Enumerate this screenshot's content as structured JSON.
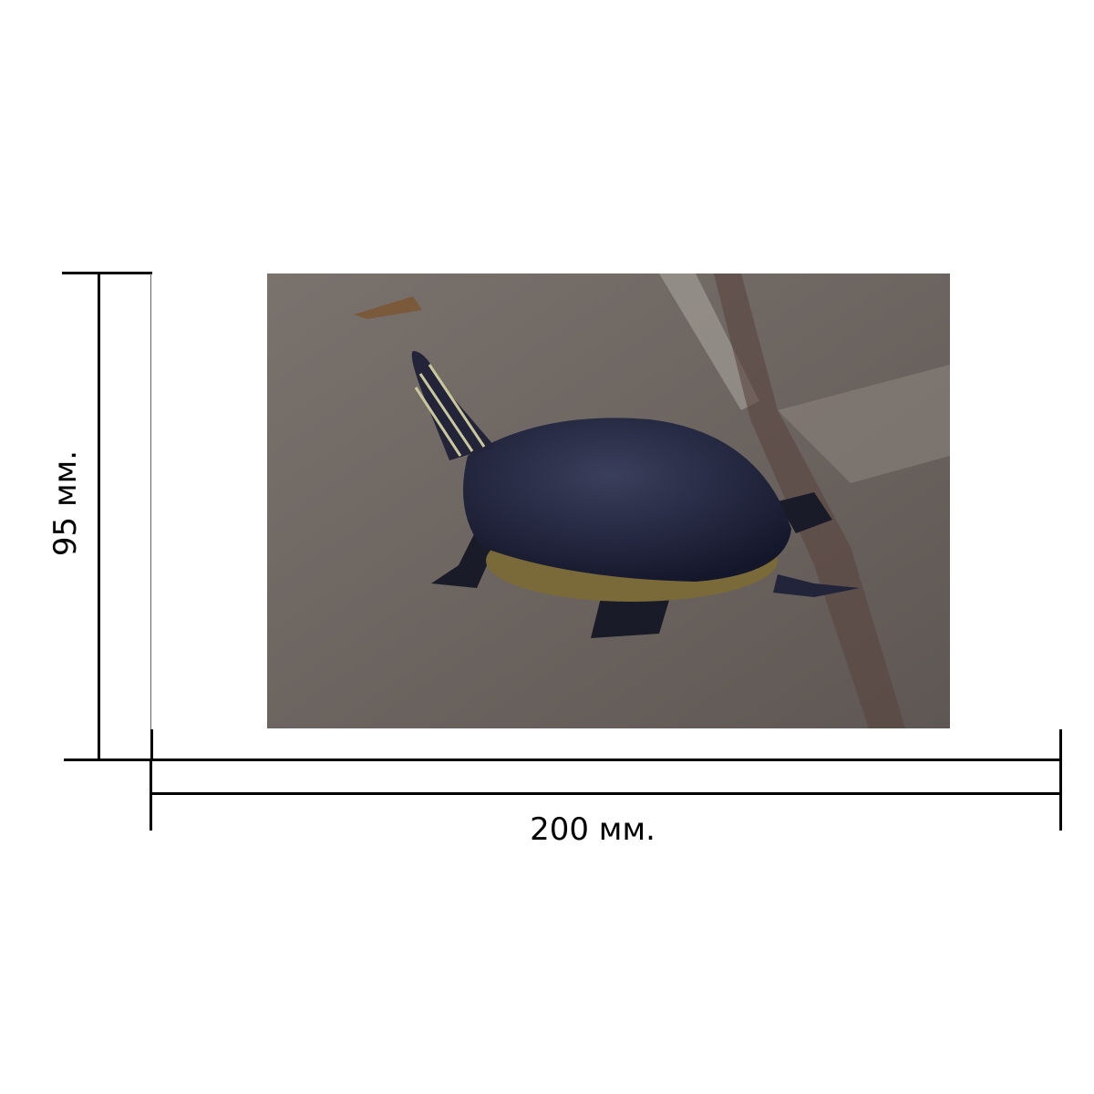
{
  "dimensions": {
    "width_label": "200 мм.",
    "height_label": "95 мм."
  },
  "photo": {
    "subject": "turtle-photo",
    "colors": {
      "ground": "#6f6863",
      "shell": "#1f2235",
      "stripes": "#c9c89a"
    }
  }
}
